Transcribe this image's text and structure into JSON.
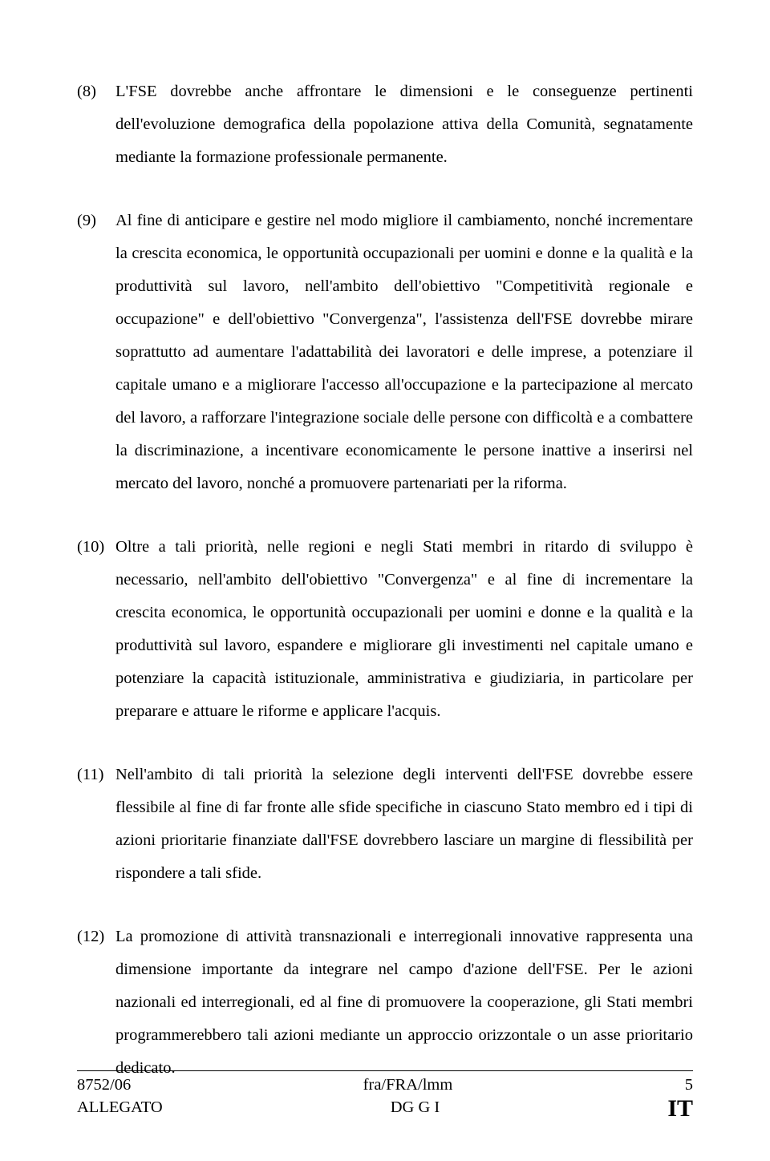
{
  "paragraphs": [
    {
      "num": "(8)",
      "text": "L'FSE dovrebbe anche affrontare le dimensioni e le conseguenze pertinenti dell'evoluzione demografica della popolazione attiva della Comunità, segnatamente mediante la formazione professionale permanente."
    },
    {
      "num": "(9)",
      "text": "Al fine di anticipare e gestire nel modo migliore il cambiamento, nonché incrementare la crescita economica, le opportunità occupazionali per uomini e donne e la qualità e la produttività sul lavoro, nell'ambito dell'obiettivo \"Competitività regionale e occupazione\" e dell'obiettivo \"Convergenza\", l'assistenza dell'FSE dovrebbe mirare soprattutto ad aumentare l'adattabilità dei lavoratori e delle imprese, a potenziare il capitale umano e a migliorare l'accesso all'occupazione e la partecipazione al mercato del lavoro, a rafforzare l'integrazione sociale delle persone con difficoltà e a combattere la discriminazione, a incentivare economicamente le persone inattive a inserirsi nel mercato del lavoro, nonché a promuovere partenariati per la riforma."
    },
    {
      "num": "(10)",
      "text": "Oltre a tali priorità, nelle regioni e negli Stati membri in ritardo di sviluppo è necessario, nell'ambito dell'obiettivo \"Convergenza\" e al fine di incrementare la crescita economica, le opportunità occupazionali per uomini e donne e la qualità e la produttività sul lavoro, espandere e migliorare gli investimenti nel capitale umano e potenziare la capacità istituzionale, amministrativa e giudiziaria, in particolare per preparare e attuare le riforme e applicare l'acquis."
    },
    {
      "num": "(11)",
      "text": "Nell'ambito di tali priorità la selezione degli interventi dell'FSE dovrebbe essere flessibile al fine di far fronte alle sfide specifiche in ciascuno Stato membro ed i tipi di azioni prioritarie finanziate dall'FSE dovrebbero lasciare un margine di flessibilità per rispondere a tali sfide."
    },
    {
      "num": "(12)",
      "text": "La promozione di attività transnazionali e interregionali innovative rappresenta una dimensione importante da integrare nel campo d'azione dell'FSE. Per le azioni nazionali ed interregionali, ed al fine di promuovere la cooperazione, gli Stati membri programmerebbero tali azioni mediante un approccio orizzontale o un asse prioritario dedicato."
    }
  ],
  "footer": {
    "doc_ref": "8752/06",
    "resp": "fra/FRA/lmm",
    "page": "5",
    "annex": "ALLEGATO",
    "dept": "DG G I",
    "lang": "IT"
  }
}
